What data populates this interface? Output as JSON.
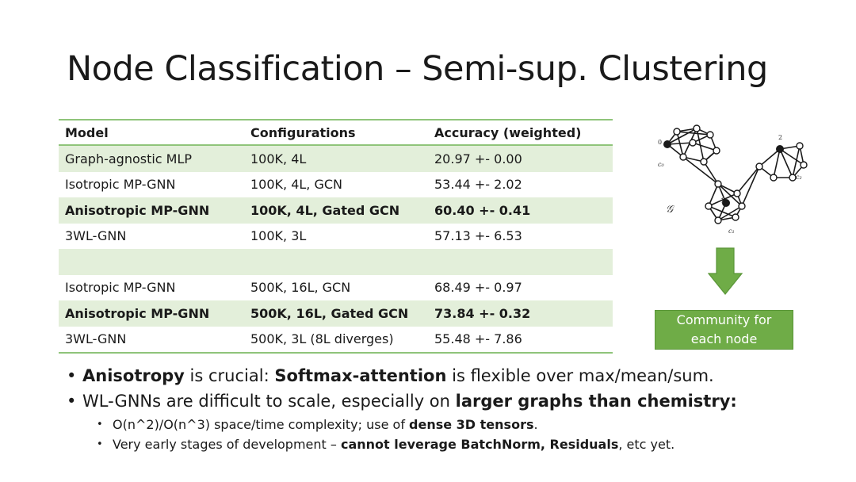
{
  "slide": {
    "title": "Node Classification – Semi-sup. Clustering"
  },
  "table": {
    "headers": [
      "Model",
      "Configurations",
      "Accuracy (weighted)"
    ],
    "rows": [
      {
        "model": "Graph-agnostic MLP",
        "config": "100K, 4L",
        "accuracy": "20.97 +- 0.00"
      },
      {
        "model": "Isotropic MP-GNN",
        "config": "100K, 4L, GCN",
        "accuracy": "53.44 +- 2.02"
      },
      {
        "model": "Anisotropic MP-GNN",
        "config": "100K, 4L, Gated GCN",
        "accuracy": "60.40 +- 0.41"
      },
      {
        "model": "3WL-GNN",
        "config": "100K, 3L",
        "accuracy": "57.13 +- 6.53"
      },
      {
        "model": "",
        "config": "",
        "accuracy": ""
      },
      {
        "model": "Isotropic MP-GNN",
        "config": "500K, 16L, GCN",
        "accuracy": "68.49 +- 0.97"
      },
      {
        "model": "Anisotropic MP-GNN",
        "config": "500K, 16L, Gated GCN",
        "accuracy": "73.84 +- 0.32"
      },
      {
        "model": "3WL-GNN",
        "config": "500K, 3L (8L diverges)",
        "accuracy": "55.48 +- 7.86"
      }
    ]
  },
  "graph_figure": {
    "graph_label": "𝒢",
    "node_labels": [
      "0",
      "2",
      "1"
    ],
    "community_labels": [
      "c₀",
      "c₂",
      "c₁"
    ]
  },
  "community_box": {
    "text": "Community for each node"
  },
  "bullets": {
    "b1": {
      "bold1": "Anisotropy",
      "t1": " is crucial: ",
      "bold2": "Softmax-attention",
      "t2": " is flexible over max/mean/sum."
    },
    "b2": {
      "t1": "WL-GNNs are difficult to scale, especially on ",
      "bold1": "larger graphs than chemistry:"
    },
    "b3": {
      "t1": "O(n^2)/O(n^3) space/time complexity; use of ",
      "bold1": "dense 3D tensors",
      "t2": "."
    },
    "b4": {
      "t1": "Very early stages of development – ",
      "bold1": "cannot leverage BatchNorm, Residuals",
      "t2": ", etc yet."
    }
  },
  "colors": {
    "accent_green": "#6fac47",
    "row_shade": "#e3efda",
    "rule_green": "#8fc47a"
  }
}
